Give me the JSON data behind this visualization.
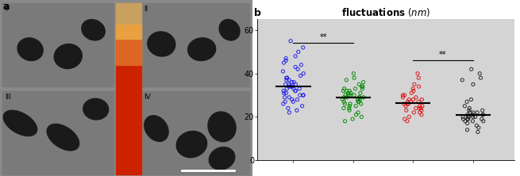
{
  "title_bold": "fluctuations",
  "title_normal": " (nm)",
  "bg_color": "#d4d4d4",
  "left_bg": "#a0a0a0",
  "ylim": [
    0,
    65
  ],
  "yticks": [
    0,
    20,
    40,
    60
  ],
  "group_colors": [
    "#1a1aee",
    "#008800",
    "#dd1111",
    "#222222"
  ],
  "significance": [
    {
      "from": 0,
      "to": 1,
      "y": 54,
      "label": "**"
    },
    {
      "from": 2,
      "to": 3,
      "y": 46,
      "label": "**"
    }
  ],
  "blue_data": [
    55,
    52,
    50,
    48,
    47,
    46,
    45,
    44,
    43,
    42,
    41,
    40,
    39,
    38,
    38,
    37,
    37,
    36,
    36,
    35,
    35,
    35,
    34,
    34,
    34,
    33,
    33,
    33,
    32,
    32,
    32,
    31,
    31,
    30,
    30,
    30,
    29,
    29,
    28,
    28,
    27,
    27,
    26,
    25,
    24,
    23,
    22
  ],
  "green_data": [
    40,
    38,
    37,
    36,
    35,
    34,
    34,
    33,
    33,
    33,
    32,
    32,
    32,
    31,
    31,
    31,
    30,
    30,
    30,
    30,
    29,
    29,
    29,
    29,
    29,
    28,
    28,
    28,
    27,
    27,
    27,
    26,
    26,
    26,
    25,
    25,
    24,
    24,
    23,
    22,
    21,
    20,
    19,
    18
  ],
  "red_data": [
    40,
    38,
    35,
    34,
    33,
    32,
    31,
    30,
    30,
    29,
    29,
    28,
    28,
    28,
    27,
    27,
    27,
    26,
    26,
    26,
    25,
    25,
    25,
    24,
    24,
    24,
    23,
    23,
    22,
    22,
    21,
    20,
    19,
    18
  ],
  "black_data": [
    42,
    40,
    38,
    37,
    35,
    28,
    27,
    25,
    24,
    23,
    23,
    22,
    22,
    22,
    21,
    21,
    21,
    21,
    20,
    20,
    20,
    20,
    20,
    19,
    19,
    19,
    19,
    18,
    18,
    18,
    17,
    16,
    15,
    14,
    13
  ]
}
